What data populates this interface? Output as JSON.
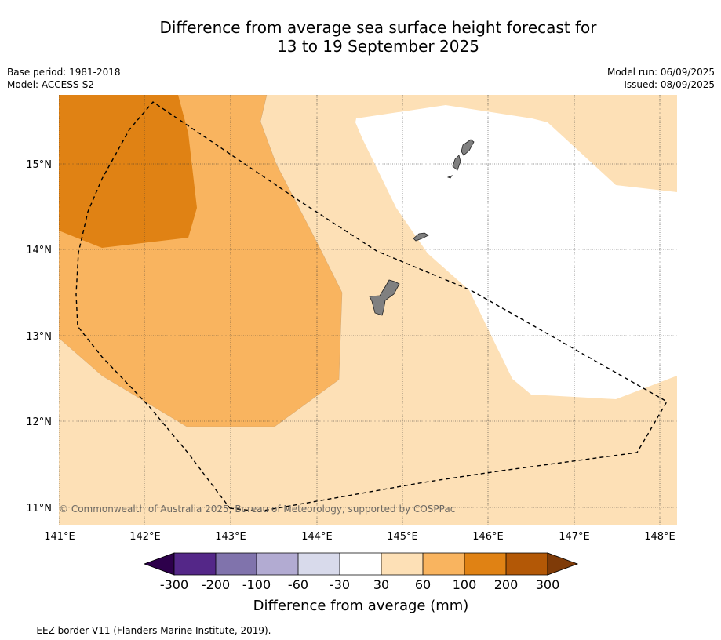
{
  "title_line1": "Difference from average sea surface height forecast for",
  "title_line2": "13 to 19 September 2025",
  "base_period": "Base period: 1981-2018",
  "model": "Model: ACCESS-S2",
  "model_run": "Model run: 06/09/2025",
  "issued": "Issued: 08/09/2025",
  "map": {
    "lat_labels": [
      "15°N",
      "14°N",
      "13°N",
      "12°N",
      "11°N"
    ],
    "lon_labels": [
      "141°E",
      "142°E",
      "143°E",
      "144°E",
      "145°E",
      "146°E",
      "147°E",
      "148°E"
    ],
    "copyright": "© Commonwealth of Australia 2025, Bureau of Meteorology, supported by COSPPac",
    "colors": {
      "band_30_60": "#fde0b6",
      "band_60_100": "#f9b45f",
      "band_100_200": "#e08214",
      "land": "#808080",
      "neutral": "#ffffff"
    }
  },
  "colorbar": {
    "title": "Difference from average (mm)",
    "tick_labels": [
      "-300",
      "-200",
      "-100",
      "-60",
      "-30",
      "30",
      "60",
      "100",
      "200",
      "300"
    ],
    "colors": [
      "#2d004b",
      "#542788",
      "#8073ac",
      "#b2abd2",
      "#d8daeb",
      "#ffffff",
      "#fde0b6",
      "#f9b45f",
      "#e08214",
      "#b35806",
      "#7f3b08"
    ]
  },
  "footnote": "--  --  -- EEZ border V11 (Flanders Marine Institute, 2019)."
}
